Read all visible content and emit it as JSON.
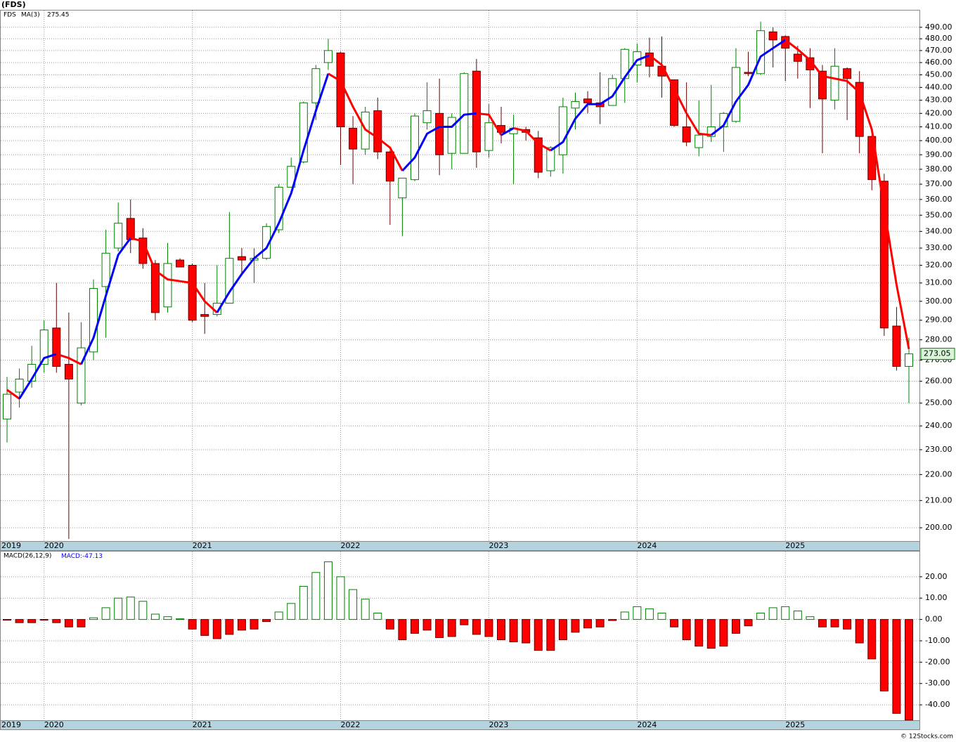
{
  "chart_data": [
    {
      "type": "candlestick",
      "title": "(FDS)",
      "symbol": "FDS",
      "categories": [
        "2019",
        null,
        null,
        "2020",
        null,
        null,
        null,
        null,
        null,
        null,
        null,
        null,
        null,
        null,
        null,
        "2021",
        null,
        null,
        null,
        null,
        null,
        null,
        null,
        null,
        null,
        null,
        null,
        "2022",
        null,
        null,
        null,
        null,
        null,
        null,
        null,
        null,
        null,
        null,
        null,
        "2023",
        null,
        null,
        null,
        null,
        null,
        null,
        null,
        null,
        null,
        null,
        null,
        "2024",
        null,
        null,
        null,
        null,
        null,
        null,
        null,
        null,
        null,
        null,
        null,
        "2025",
        null,
        null,
        null,
        null,
        null,
        null,
        null,
        null,
        null,
        null
      ],
      "open": [
        243,
        255,
        260,
        268,
        286,
        268,
        250,
        274,
        308,
        330,
        348,
        336,
        321,
        297,
        323,
        320,
        293,
        293,
        299,
        325,
        323,
        324,
        341,
        368,
        385,
        428,
        460,
        468,
        409,
        394,
        422,
        392,
        361,
        373,
        413,
        420,
        391,
        391,
        453,
        393,
        411,
        405,
        408,
        402,
        379,
        390,
        424,
        431,
        428,
        426,
        447,
        458,
        468,
        457,
        446,
        410,
        395,
        403,
        410,
        414,
        452,
        451,
        486,
        482,
        467,
        464,
        453,
        430,
        455,
        444,
        403,
        372,
        287,
        267
      ],
      "high": [
        262,
        266,
        277,
        290,
        310,
        294,
        289,
        312,
        341,
        358,
        360,
        342,
        323,
        333,
        324,
        321,
        310,
        320,
        352,
        330,
        330,
        345,
        370,
        388,
        429,
        458,
        480,
        469,
        418,
        425,
        432,
        393,
        374,
        420,
        444,
        447,
        420,
        452,
        463,
        427,
        425,
        419,
        410,
        407,
        396,
        432,
        436,
        437,
        452,
        450,
        472,
        476,
        481,
        482,
        446,
        444,
        430,
        442,
        421,
        472,
        469,
        495,
        490,
        483,
        474,
        472,
        458,
        472,
        456,
        453,
        404,
        377,
        297,
        281
      ],
      "low": [
        233,
        248,
        257,
        264,
        264,
        196,
        249,
        270,
        281,
        328,
        327,
        318,
        290,
        294,
        319,
        289,
        283,
        292,
        299,
        314,
        310,
        323,
        339,
        368,
        384,
        415,
        454,
        383,
        370,
        390,
        387,
        344,
        337,
        372,
        408,
        376,
        380,
        391,
        381,
        388,
        398,
        370,
        400,
        374,
        375,
        377,
        408,
        420,
        412,
        426,
        428,
        444,
        448,
        432,
        410,
        396,
        389,
        399,
        392,
        413,
        449,
        450,
        456,
        445,
        447,
        424,
        391,
        423,
        415,
        391,
        366,
        282,
        265,
        250
      ],
      "close": [
        254,
        261,
        268,
        285,
        267,
        261,
        276,
        307,
        327,
        345,
        335,
        321,
        294,
        321,
        319,
        290,
        292,
        299,
        324,
        323,
        324,
        343,
        368,
        382,
        428,
        455,
        470,
        410,
        394,
        421,
        392,
        372,
        374,
        418,
        422,
        390,
        417,
        451,
        392,
        413,
        406,
        409,
        406,
        378,
        395,
        425,
        429,
        428,
        425,
        447,
        471,
        469,
        457,
        449,
        411,
        399,
        404,
        410,
        420,
        456,
        451,
        487,
        479,
        472,
        461,
        454,
        431,
        457,
        447,
        403,
        373,
        286,
        267,
        273.05
      ],
      "up_color": "#008000",
      "down_color": "#ff0000",
      "ma": {
        "name": "MA(3)",
        "up_color": "#0000ff",
        "down_color": "#ff0000",
        "values": [
          256,
          252,
          261,
          271,
          273,
          271,
          268,
          281,
          303,
          326,
          336,
          334,
          317,
          312,
          311,
          310,
          300,
          294,
          305,
          315,
          324,
          330,
          345,
          364,
          393,
          422,
          451,
          445,
          425,
          408,
          402,
          395,
          379,
          388,
          405,
          410,
          410,
          419,
          420,
          419,
          404,
          409,
          407,
          398,
          393,
          399,
          416,
          427,
          427,
          433,
          448,
          462,
          466,
          458,
          439,
          420,
          405,
          404,
          411,
          429,
          442,
          465,
          472,
          479,
          471,
          462,
          449,
          447,
          445,
          436,
          408,
          354,
          309,
          275.45
        ]
      },
      "log_scale": true,
      "grid": true,
      "ylim": [
        195.3,
        504.9
      ],
      "yticks": [
        {
          "value": 200,
          "label": "200.00"
        },
        {
          "value": 210,
          "label": "210.00"
        },
        {
          "value": 220,
          "label": "220.00"
        },
        {
          "value": 230,
          "label": "230.00"
        },
        {
          "value": 240,
          "label": "240.00"
        },
        {
          "value": 250,
          "label": "250.00"
        },
        {
          "value": 260,
          "label": "260.00"
        },
        {
          "value": 270,
          "label": "270.00"
        },
        {
          "value": 280,
          "label": "280.00"
        },
        {
          "value": 290,
          "label": "290.00"
        },
        {
          "value": 300,
          "label": "300.00"
        },
        {
          "value": 310,
          "label": "310.00"
        },
        {
          "value": 320,
          "label": "320.00"
        },
        {
          "value": 330,
          "label": "330.00"
        },
        {
          "value": 340,
          "label": "340.00"
        },
        {
          "value": 350,
          "label": "350.00"
        },
        {
          "value": 360,
          "label": "360.00"
        },
        {
          "value": 370,
          "label": "370.00"
        },
        {
          "value": 380,
          "label": "380.00"
        },
        {
          "value": 390,
          "label": "390.00"
        },
        {
          "value": 400,
          "label": "400.00"
        },
        {
          "value": 410,
          "label": "410.00"
        },
        {
          "value": 420,
          "label": "420.00"
        },
        {
          "value": 430,
          "label": "430.00"
        },
        {
          "value": 440,
          "label": "440.00"
        },
        {
          "value": 450,
          "label": "450.00"
        },
        {
          "value": 460,
          "label": "460.00"
        },
        {
          "value": 470,
          "label": "470.00"
        },
        {
          "value": 480,
          "label": "480.00"
        },
        {
          "value": 490,
          "label": "490.00"
        }
      ]
    },
    {
      "type": "bar",
      "name": "MACD(26,12,9)",
      "value_caption": "MACD:",
      "values": [
        -0.3,
        -1.5,
        -1.5,
        -0.2,
        -1.5,
        -3.5,
        -3.5,
        0.8,
        5.5,
        10,
        10.5,
        8.5,
        2.5,
        1.3,
        0.3,
        -4.5,
        -7.5,
        -9,
        -7,
        -5,
        -4.5,
        -1,
        3.5,
        7.5,
        15.5,
        22,
        27,
        20,
        14,
        9.5,
        3,
        -4.5,
        -9.5,
        -6.5,
        -5,
        -8.5,
        -8,
        -2.5,
        -7,
        -8,
        -9.5,
        -10.5,
        -11,
        -14.5,
        -14.5,
        -9.5,
        -6,
        -4,
        -3.5,
        -0.5,
        3.5,
        6,
        5,
        3,
        -3.5,
        -9.5,
        -12.5,
        -13.5,
        -12.5,
        -6.5,
        -3,
        3,
        5.5,
        6,
        4,
        1.3,
        -3.5,
        -3.5,
        -4.5,
        -11,
        -18.5,
        -33.5,
        -44,
        -47.13
      ],
      "up_color": "#008000",
      "down_color": "#ff0000",
      "grid": true,
      "ylim": [
        -47.2,
        31.8
      ],
      "yticks": [
        {
          "value": 20,
          "label": "20.00"
        },
        {
          "value": 10,
          "label": "10.00"
        },
        {
          "value": 0,
          "label": "0.00"
        },
        {
          "value": -10,
          "label": "-10.00"
        },
        {
          "value": -20,
          "label": "-20.00"
        },
        {
          "value": -30,
          "label": "-30.00"
        },
        {
          "value": -40,
          "label": "-40.00"
        }
      ]
    }
  ],
  "credit": "© 12Stocks.com"
}
